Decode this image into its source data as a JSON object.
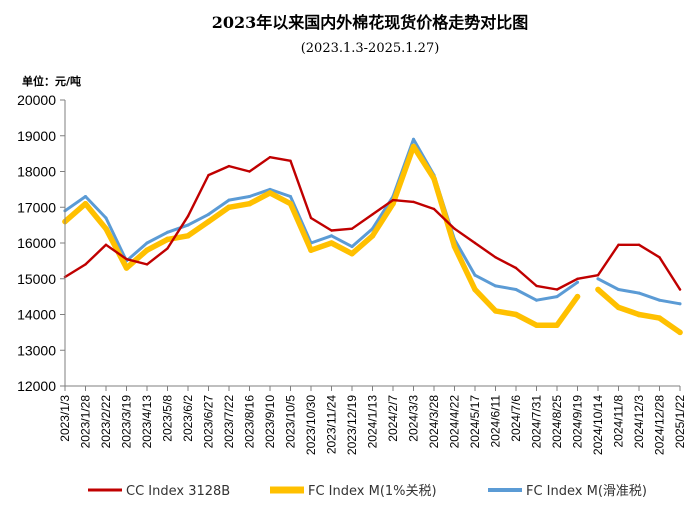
{
  "chart_data": {
    "type": "line",
    "title": "2023年以来国内外棉花现货价格走势对比图",
    "subtitle": "(2023.1.3-2025.1.27)",
    "ylabel": "单位：元/吨",
    "xlabel": "",
    "ylim": [
      12000,
      20000
    ],
    "yticks": [
      12000,
      13000,
      14000,
      15000,
      16000,
      17000,
      18000,
      19000,
      20000
    ],
    "grid": false,
    "legend_position": "bottom",
    "categories": [
      "2023/1/3",
      "2023/1/28",
      "2023/2/22",
      "2023/3/19",
      "2023/4/13",
      "2023/5/8",
      "2023/6/2",
      "2023/6/27",
      "2023/7/22",
      "2023/8/16",
      "2023/9/10",
      "2023/10/5",
      "2023/10/30",
      "2023/11/24",
      "2023/12/19",
      "2024/1/13",
      "2024/2/7",
      "2024/3/3",
      "2024/3/28",
      "2024/4/22",
      "2024/5/17",
      "2024/6/11",
      "2024/7/6",
      "2024/7/31",
      "2024/8/25",
      "2024/9/19",
      "2024/10/14",
      "2024/11/8",
      "2024/12/3",
      "2024/12/28",
      "2025/1/22"
    ],
    "series": [
      {
        "name": "CC Index 3128B",
        "color": "#c00000",
        "values": [
          15050,
          15400,
          15950,
          15550,
          15400,
          15850,
          16750,
          17900,
          18150,
          18000,
          18400,
          18300,
          16700,
          16350,
          16400,
          16800,
          17200,
          17150,
          16950,
          16400,
          16000,
          15600,
          15300,
          14800,
          14700,
          15000,
          15100,
          15950,
          15950,
          15600,
          14700
        ],
        "gaps_after": []
      },
      {
        "name": "FC Index M(1%关税)",
        "color": "#ffc000",
        "values": [
          16600,
          17100,
          16400,
          15300,
          15800,
          16100,
          16200,
          16600,
          17000,
          17100,
          17400,
          17100,
          15800,
          16000,
          15700,
          16200,
          17100,
          18700,
          17800,
          15900,
          14700,
          14100,
          14000,
          13700,
          13700,
          14500,
          14700,
          14200,
          14000,
          13900,
          13500
        ],
        "gaps_after": [
          25
        ]
      },
      {
        "name": "FC Index M(滑准税)",
        "color": "#5b9bd5",
        "values": [
          16900,
          17300,
          16700,
          15500,
          16000,
          16300,
          16500,
          16800,
          17200,
          17300,
          17500,
          17300,
          16000,
          16200,
          15900,
          16400,
          17300,
          18900,
          17900,
          16100,
          15100,
          14800,
          14700,
          14400,
          14500,
          14900,
          15000,
          14700,
          14600,
          14400,
          14300
        ],
        "gaps_after": [
          25
        ]
      }
    ],
    "draw_order": [
      2,
      1,
      0
    ]
  }
}
